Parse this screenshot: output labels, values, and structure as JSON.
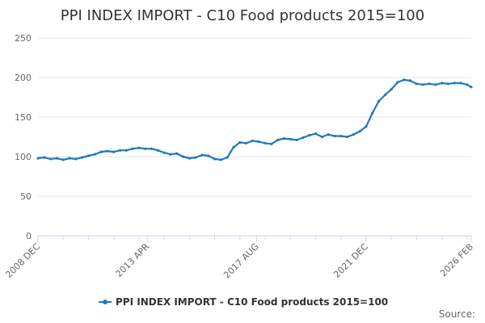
{
  "chart_data": {
    "type": "line",
    "title": "PPI INDEX IMPORT - C10 Food products 2015=100",
    "xlabel": "",
    "ylabel": "",
    "ylim": [
      0,
      250
    ],
    "yticks": [
      0,
      50,
      100,
      150,
      200,
      250
    ],
    "x_ticks": [
      "2008 DEC",
      "2013 APR",
      "2017 AUG",
      "2021 DEC",
      "2026 FEB"
    ],
    "xlim": [
      "2008-12",
      "2026-02"
    ],
    "grid": true,
    "legend": "bottom-center",
    "series": [
      {
        "name": "PPI INDEX IMPORT - C10 Food products 2015=100",
        "color": "#1f7ab8",
        "x": [
          "2008-12",
          "2009-03",
          "2009-06",
          "2009-09",
          "2009-12",
          "2010-03",
          "2010-06",
          "2010-09",
          "2010-12",
          "2011-03",
          "2011-06",
          "2011-09",
          "2011-12",
          "2012-03",
          "2012-06",
          "2012-09",
          "2012-12",
          "2013-03",
          "2013-06",
          "2013-09",
          "2013-12",
          "2014-03",
          "2014-06",
          "2014-09",
          "2014-12",
          "2015-03",
          "2015-06",
          "2015-09",
          "2015-12",
          "2016-03",
          "2016-06",
          "2016-09",
          "2016-12",
          "2017-03",
          "2017-06",
          "2017-09",
          "2017-12",
          "2018-03",
          "2018-06",
          "2018-09",
          "2018-12",
          "2019-03",
          "2019-06",
          "2019-09",
          "2019-12",
          "2020-03",
          "2020-06",
          "2020-09",
          "2020-12",
          "2021-03",
          "2021-06",
          "2021-09",
          "2021-12",
          "2022-03",
          "2022-06",
          "2022-09",
          "2022-12",
          "2023-03",
          "2023-06",
          "2023-09",
          "2023-12",
          "2024-03",
          "2024-06",
          "2024-09",
          "2024-12",
          "2025-03",
          "2025-06",
          "2025-09",
          "2025-12",
          "2026-02"
        ],
        "values": [
          98,
          99,
          97,
          98,
          96,
          98,
          97,
          99,
          101,
          103,
          106,
          107,
          106,
          108,
          108,
          110,
          111,
          110,
          110,
          108,
          105,
          103,
          104,
          100,
          98,
          99,
          102,
          101,
          97,
          96,
          99,
          112,
          118,
          117,
          120,
          119,
          117,
          116,
          121,
          123,
          122,
          121,
          124,
          127,
          129,
          125,
          128,
          126,
          126,
          125,
          128,
          132,
          138,
          155,
          170,
          178,
          185,
          194,
          197,
          196,
          192,
          191,
          192,
          191,
          193,
          192,
          193,
          193,
          191,
          188
        ]
      }
    ]
  },
  "credits": "Source:"
}
